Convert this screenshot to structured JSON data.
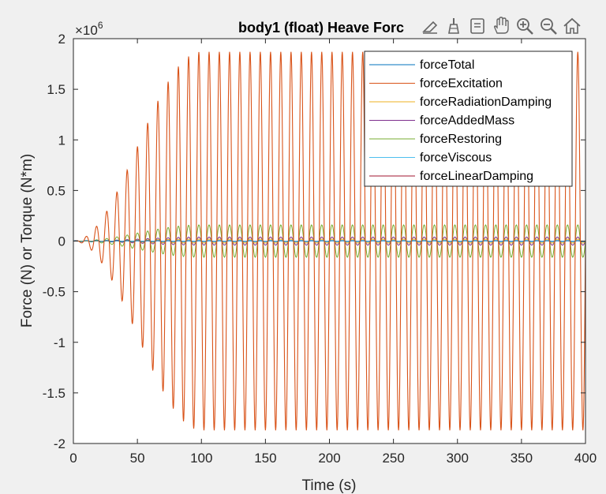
{
  "chart_data": {
    "type": "line",
    "title": "body1 (float) Heave Forc",
    "xlabel": "Time (s)",
    "ylabel": "Force (N) or Torque (N*m)",
    "exponent_label": "×10",
    "exponent_power": "6",
    "xlim": [
      0,
      400
    ],
    "ylim": [
      -2,
      2
    ],
    "y_scale_factor": 1000000,
    "xticks": [
      0,
      50,
      100,
      150,
      200,
      250,
      300,
      350,
      400
    ],
    "yticks": [
      -2,
      -1.5,
      -1,
      -0.5,
      0,
      0.5,
      1,
      1.5,
      2
    ],
    "grid": false,
    "legend_position": "top-right",
    "series": [
      {
        "name": "forceTotal",
        "color": "#0072bd",
        "amplitude": 0.005,
        "period": 8
      },
      {
        "name": "forceExcitation",
        "color": "#d95319",
        "amplitude": 1.87,
        "period": 8,
        "ramp_end": 100
      },
      {
        "name": "forceRadiationDamping",
        "color": "#edb120",
        "amplitude": 0.02,
        "period": 8,
        "ramp_end": 100
      },
      {
        "name": "forceAddedMass",
        "color": "#7e2f8e",
        "amplitude": 0.04,
        "period": 8,
        "ramp_end": 100
      },
      {
        "name": "forceRestoring",
        "color": "#77ac30",
        "amplitude": 0.16,
        "period": 8,
        "ramp_end": 100
      },
      {
        "name": "forceViscous",
        "color": "#4dbeee",
        "amplitude": 0.002,
        "period": 8
      },
      {
        "name": "forceLinearDamping",
        "color": "#a2142f",
        "amplitude": 0.003,
        "period": 8
      }
    ]
  },
  "toolbar": {
    "items": [
      "export-icon",
      "brush-icon",
      "datatip-icon",
      "pan-icon",
      "zoom-in-icon",
      "zoom-out-icon",
      "home-icon"
    ]
  }
}
